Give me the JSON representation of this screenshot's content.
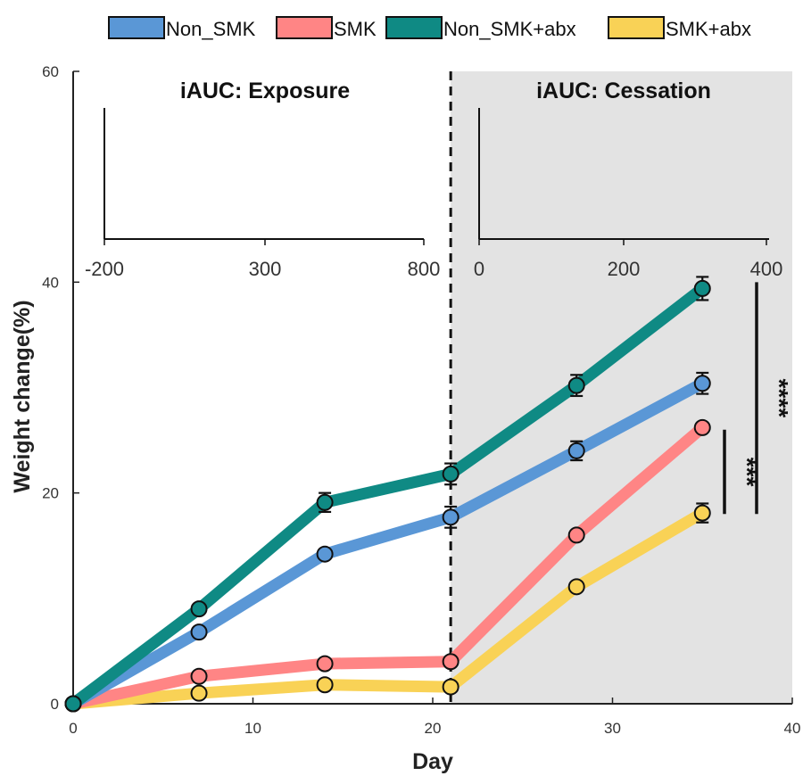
{
  "chart_data": {
    "type": "line",
    "xlabel": "Day",
    "ylabel": "Weight change(%)",
    "xlim": [
      0,
      40
    ],
    "ylim": [
      0,
      60
    ],
    "x_ticks": [
      "0",
      "10",
      "20",
      "30",
      "40"
    ],
    "y_ticks": [
      "0",
      "20",
      "40",
      "60"
    ],
    "x": [
      0,
      7,
      14,
      21,
      28,
      35
    ],
    "grid": false,
    "legend_position": "top",
    "cessation_day": 21,
    "series": [
      {
        "name": "Non_SMK",
        "color": "#5a97d6",
        "values": [
          0,
          6.8,
          14.2,
          17.7,
          24.0,
          30.4
        ],
        "errors": [
          0,
          0.4,
          0.4,
          1.0,
          0.9,
          1.0
        ]
      },
      {
        "name": "SMK",
        "color": "#ff8585",
        "values": [
          0,
          2.6,
          3.8,
          4.0,
          16.0,
          26.2
        ],
        "errors": [
          0,
          0.3,
          0.3,
          0.3,
          0.4,
          0.4
        ]
      },
      {
        "name": "Non_SMK+abx",
        "color": "#0f8a84",
        "values": [
          0,
          9.0,
          19.1,
          21.8,
          30.2,
          39.4
        ],
        "errors": [
          0,
          0.4,
          0.9,
          1.0,
          1.0,
          1.1
        ]
      },
      {
        "name": "SMK+abx",
        "color": "#f9d256",
        "values": [
          0,
          1.0,
          1.8,
          1.6,
          11.1,
          18.1
        ],
        "errors": [
          0,
          0.3,
          0.3,
          0.3,
          0.4,
          0.9
        ]
      }
    ],
    "significance": [
      {
        "label": "***",
        "from": 18,
        "to": 26
      },
      {
        "label": "****",
        "from": 18,
        "to": 40
      }
    ],
    "insets": [
      {
        "title": "iAUC: Exposure",
        "ticks": [
          "-200",
          "300",
          "800"
        ]
      },
      {
        "title": "iAUC: Cessation",
        "ticks": [
          "0",
          "200",
          "400"
        ]
      }
    ]
  }
}
